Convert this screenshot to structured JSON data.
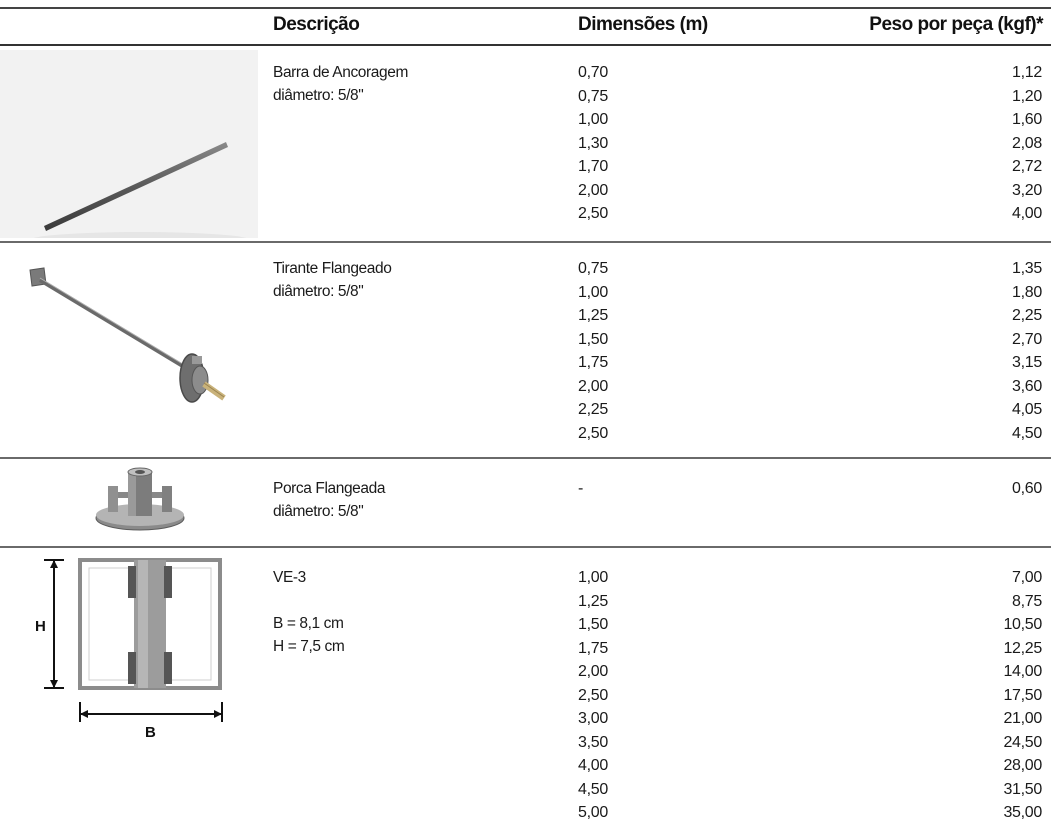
{
  "headers": {
    "descricao": "Descrição",
    "dimensoes": "Dimensões (m)",
    "peso": "Peso por peça (kgf)*"
  },
  "rows": [
    {
      "image_icon": "anchor-bar-image",
      "desc": [
        "Barra de Ancoragem",
        "diâmetro: 5/8\""
      ],
      "dims": [
        "0,70",
        "0,75",
        "1,00",
        "1,30",
        "1,70",
        "2,00",
        "2,50"
      ],
      "pesos": [
        "1,12",
        "1,20",
        "1,60",
        "2,08",
        "2,72",
        "3,20",
        "4,00"
      ]
    },
    {
      "image_icon": "flanged-tie-rod-image",
      "desc": [
        "Tirante Flangeado",
        "diâmetro: 5/8\""
      ],
      "dims": [
        "0,75",
        "1,00",
        "1,25",
        "1,50",
        "1,75",
        "2,00",
        "2,25",
        "2,50"
      ],
      "pesos": [
        "1,35",
        "1,80",
        "2,25",
        "2,70",
        "3,15",
        "3,60",
        "4,05",
        "4,50"
      ]
    },
    {
      "image_icon": "flanged-nut-image",
      "desc": [
        "Porca Flangeada",
        "diâmetro: 5/8\""
      ],
      "dims": [
        "-"
      ],
      "pesos": [
        "0,60"
      ]
    },
    {
      "image_icon": "ve3-profile-diagram",
      "desc": [
        "VE-3",
        "",
        "B = 8,1 cm",
        "H = 7,5 cm"
      ],
      "dims": [
        "1,00",
        "1,25",
        "1,50",
        "1,75",
        "2,00",
        "2,50",
        "3,00",
        "3,50",
        "4,00",
        "4,50",
        "5,00"
      ],
      "pesos": [
        "7,00",
        "8,75",
        "10,50",
        "12,25",
        "14,00",
        "17,50",
        "21,00",
        "24,50",
        "28,00",
        "31,50",
        "35,00"
      ],
      "diagram_labels": {
        "h": "H",
        "b": "B"
      }
    }
  ]
}
